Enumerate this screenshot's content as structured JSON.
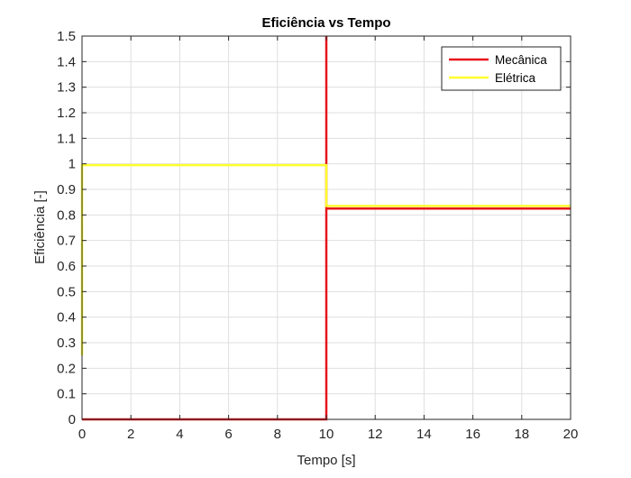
{
  "chart_data": {
    "type": "line",
    "title": "Eficiência vs Tempo",
    "xlabel": "Tempo [s]",
    "ylabel": "Eficiência [-]",
    "xlim": [
      0,
      20
    ],
    "ylim": [
      0,
      1.5
    ],
    "xticks": [
      "0",
      "2",
      "4",
      "6",
      "8",
      "10",
      "12",
      "14",
      "16",
      "18",
      "20"
    ],
    "yticks": [
      "0",
      "0.1",
      "0.2",
      "0.3",
      "0.4",
      "0.5",
      "0.6",
      "0.7",
      "0.8",
      "0.9",
      "1",
      "1.1",
      "1.2",
      "1.3",
      "1.4",
      "1.5"
    ],
    "grid": true,
    "legend_position": "top-right",
    "series": [
      {
        "name": "Mecânica",
        "color": "#e8141b",
        "points": [
          [
            0,
            0.0
          ],
          [
            10,
            0.0
          ],
          [
            10,
            1.5
          ],
          [
            10,
            0.825
          ],
          [
            20,
            0.825
          ]
        ]
      },
      {
        "name": "Elétrica",
        "color": "#ffff2e",
        "points": [
          [
            0,
            0.25
          ],
          [
            0,
            0.995
          ],
          [
            10,
            0.995
          ],
          [
            10,
            0.835
          ],
          [
            20,
            0.835
          ]
        ]
      }
    ]
  }
}
